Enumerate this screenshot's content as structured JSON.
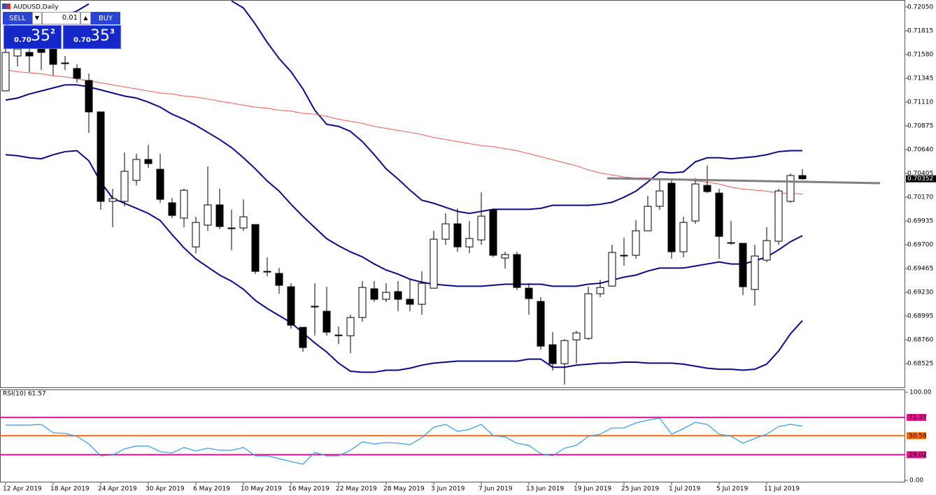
{
  "chart_data": [
    {
      "type": "candlestick",
      "title": "AUDUSD,Daily",
      "categories": [
        "12 Apr 2019",
        null,
        null,
        null,
        "18 Apr 2019",
        null,
        null,
        null,
        "24 Apr 2019",
        null,
        null,
        null,
        "30 Apr 2019",
        null,
        null,
        null,
        "6 May 2019",
        null,
        null,
        null,
        "10 May 2019",
        null,
        null,
        null,
        "16 May 2019",
        null,
        null,
        null,
        "22 May 2019",
        null,
        null,
        null,
        "28 May 2019",
        null,
        null,
        null,
        "3 Jun 2019",
        null,
        null,
        null,
        "7 Jun 2019",
        null,
        null,
        null,
        "13 Jun 2019",
        null,
        null,
        null,
        "19 Jun 2019",
        null,
        null,
        null,
        "25 Jun 2019",
        null,
        null,
        null,
        "1 Jul 2019",
        null,
        null,
        null,
        "5 Jul 2019",
        null,
        null,
        null,
        "11 Jul 2019",
        null,
        null,
        null
      ],
      "open": [
        0.71221,
        0.71566,
        0.71601,
        0.71635,
        0.71635,
        0.71497,
        0.71442,
        0.71324,
        0.71013,
        0.70129,
        0.70129,
        0.70336,
        0.70543,
        0.70446,
        0.70115,
        0.69963,
        0.69679,
        0.69894,
        0.70094,
        0.69866,
        0.69866,
        0.699,
        0.69437,
        0.69417,
        0.69285,
        0.68884,
        0.69092,
        0.69043,
        0.68808,
        0.68801,
        0.68981,
        0.69265,
        0.69161,
        0.69237,
        0.69161,
        0.69112,
        0.69271,
        0.69755,
        0.69907,
        0.69679,
        0.69748,
        0.70046,
        0.69569,
        0.69603,
        0.69271,
        0.6914,
        0.68712,
        0.68525,
        0.6876,
        0.68774,
        0.69216,
        0.69292,
        0.69596,
        0.69596,
        0.69838,
        0.7008,
        0.70308,
        0.69631,
        0.69935,
        0.70287,
        0.70211,
        0.69721,
        0.69714,
        0.69258,
        0.69548,
        0.69735,
        0.70129,
        0.70384
      ],
      "high": [
        0.71704,
        0.71704,
        0.7167,
        0.71704,
        0.71704,
        0.71566,
        0.71483,
        0.71393,
        0.71013,
        0.70253,
        0.70612,
        0.70598,
        0.70688,
        0.70598,
        0.70163,
        0.70253,
        0.69976,
        0.70474,
        0.70253,
        0.70046,
        0.70149,
        0.699,
        0.69576,
        0.69472,
        0.6932,
        0.68884,
        0.6932,
        0.69285,
        0.68891,
        0.69009,
        0.69341,
        0.69341,
        0.6932,
        0.69341,
        0.69354,
        0.69437,
        0.69838,
        0.70011,
        0.70059,
        0.69935,
        0.70218,
        0.70059,
        0.69631,
        0.69631,
        0.6932,
        0.69182,
        0.68836,
        0.68767,
        0.6885,
        0.69285,
        0.69354,
        0.697,
        0.69769,
        0.69942,
        0.70184,
        0.70357,
        0.70357,
        0.69976,
        0.70357,
        0.70481,
        0.70253,
        0.69935,
        0.69714,
        0.697,
        0.69873,
        0.70253,
        0.70405,
        0.70446
      ],
      "low": [
        0.71221,
        0.71462,
        0.71407,
        0.71428,
        0.71373,
        0.71428,
        0.71304,
        0.70806,
        0.70046,
        0.69873,
        0.7008,
        0.70287,
        0.7046,
        0.70115,
        0.69963,
        0.69873,
        0.69617,
        0.69838,
        0.69852,
        0.69645,
        0.69838,
        0.6941,
        0.69389,
        0.69216,
        0.68871,
        0.68642,
        0.68801,
        0.68801,
        0.68718,
        0.68629,
        0.6894,
        0.69133,
        0.69133,
        0.69043,
        0.69043,
        0.69009,
        0.69271,
        0.697,
        0.69631,
        0.69617,
        0.697,
        0.69576,
        0.69465,
        0.69251,
        0.69009,
        0.68663,
        0.68456,
        0.68318,
        0.68525,
        0.6876,
        0.69182,
        0.69285,
        0.69493,
        0.69562,
        0.69838,
        0.70046,
        0.69562,
        0.69576,
        0.69907,
        0.70211,
        0.69562,
        0.697,
        0.69202,
        0.69099,
        0.69527,
        0.697,
        0.70115,
        0.70343
      ],
      "close": [
        0.71601,
        0.71635,
        0.71566,
        0.71601,
        0.71483,
        0.71497,
        0.71345,
        0.71013,
        0.70129,
        0.70156,
        0.70426,
        0.70543,
        0.70502,
        0.70149,
        0.6999,
        0.70239,
        0.69921,
        0.70094,
        0.6988,
        0.69866,
        0.69976,
        0.69437,
        0.69437,
        0.69299,
        0.68905,
        0.68684,
        0.69092,
        0.68836,
        0.68808,
        0.68981,
        0.69278,
        0.69161,
        0.6923,
        0.69161,
        0.69112,
        0.6932,
        0.69755,
        0.69907,
        0.69679,
        0.69762,
        0.69983,
        0.69596,
        0.69603,
        0.69278,
        0.69168,
        0.68698,
        0.68525,
        0.68753,
        0.68829,
        0.69216,
        0.69278,
        0.69624,
        0.69596,
        0.69838,
        0.7008,
        0.70232,
        0.69631,
        0.69921,
        0.70301,
        0.70225,
        0.69783,
        0.69721,
        0.69285,
        0.69589,
        0.69741,
        0.70232,
        0.70384,
        0.70352
      ],
      "up_color": "#ffffff",
      "down_color": "#000000",
      "series": [
        {
          "color": "#0a0a8c",
          "values": [
            0.7188,
            0.7189,
            0.7191,
            0.7193,
            0.7195,
            0.7197,
            0.7201,
            0.7208,
            null,
            null,
            null,
            null,
            null,
            null,
            null,
            null,
            null,
            null,
            null,
            0.7211,
            0.7204,
            0.7188,
            0.717,
            0.7154,
            0.7141,
            0.7124,
            0.7103,
            0.7089,
            0.7087,
            0.7082,
            0.7072,
            0.7059,
            0.7045,
            0.7035,
            0.7024,
            0.7014,
            0.7011,
            0.7007,
            0.7003,
            0.7001,
            0.7003,
            0.7005,
            0.7005,
            0.7005,
            0.7005,
            0.7006,
            0.7009,
            0.7009,
            0.7009,
            0.7009,
            0.701,
            0.7012,
            0.7017,
            0.7023,
            0.7032,
            0.7042,
            0.7041,
            0.7042,
            0.7052,
            0.7056,
            0.7056,
            0.7055,
            0.7056,
            0.7057,
            0.7059,
            0.7062,
            0.7063,
            0.7063
          ]
        },
        {
          "color": "#0a0a8c",
          "values": [
            0.7113,
            0.7115,
            0.7119,
            0.7122,
            0.7125,
            0.7128,
            0.7128,
            0.7126,
            0.7123,
            0.712,
            0.7117,
            0.7115,
            0.7111,
            0.7106,
            0.7099,
            0.7094,
            0.7088,
            0.7081,
            0.7074,
            0.7066,
            0.7056,
            0.7045,
            0.7033,
            0.7023,
            0.701,
            0.6998,
            0.6987,
            0.6976,
            0.6969,
            0.6963,
            0.6958,
            0.6951,
            0.6945,
            0.6941,
            0.6936,
            0.6933,
            0.6931,
            0.693,
            0.6929,
            0.6929,
            0.6929,
            0.693,
            0.6931,
            0.6931,
            0.6931,
            0.6931,
            0.6929,
            0.6929,
            0.6929,
            0.6931,
            0.6932,
            0.6935,
            0.6938,
            0.694,
            0.6944,
            0.6947,
            0.6947,
            0.6947,
            0.6949,
            0.6951,
            0.6953,
            0.6951,
            0.6951,
            0.6954,
            0.6958,
            0.6965,
            0.6973,
            0.6979
          ]
        },
        {
          "color": "#0a0a8c",
          "values": [
            0.7059,
            0.7058,
            0.7056,
            0.7055,
            0.7059,
            0.7062,
            0.7063,
            0.7053,
            0.7032,
            0.7016,
            0.7011,
            0.7006,
            0.7001,
            0.6994,
            0.698,
            0.6967,
            0.6956,
            0.6948,
            0.694,
            0.6934,
            0.6926,
            0.6915,
            0.6907,
            0.69,
            0.6893,
            0.6883,
            0.6873,
            0.6864,
            0.6853,
            0.6845,
            0.6844,
            0.6844,
            0.6846,
            0.6846,
            0.6848,
            0.6851,
            0.6853,
            0.6854,
            0.6855,
            0.6855,
            0.6855,
            0.6855,
            0.6855,
            0.6855,
            0.6857,
            0.6857,
            0.6849,
            0.6849,
            0.6851,
            0.6852,
            0.6853,
            0.6853,
            0.6854,
            0.6854,
            0.6853,
            0.6853,
            0.6853,
            0.6852,
            0.685,
            0.6848,
            0.6847,
            0.6847,
            0.6846,
            0.6847,
            0.6852,
            0.6865,
            0.6882,
            0.6895
          ]
        },
        {
          "color": "#f05a50",
          "values": [
            0.7143,
            0.7141,
            0.714,
            0.7139,
            0.7137,
            0.7136,
            0.7134,
            0.7132,
            0.713,
            0.7128,
            0.7126,
            0.7124,
            0.7122,
            0.712,
            0.7119,
            0.7117,
            0.7116,
            0.7114,
            0.7112,
            0.711,
            0.7108,
            0.7106,
            0.7105,
            0.7103,
            0.7102,
            0.71,
            0.7099,
            0.7097,
            0.7094,
            0.7092,
            0.709,
            0.7087,
            0.7085,
            0.7083,
            0.7081,
            0.7079,
            0.7076,
            0.7074,
            0.7072,
            0.707,
            0.7068,
            0.7067,
            0.7065,
            0.7063,
            0.706,
            0.7057,
            0.7054,
            0.7051,
            0.7048,
            0.7044,
            0.7041,
            0.7039,
            0.7037,
            0.7036,
            0.7036,
            0.7035,
            0.7034,
            0.7034,
            0.7033,
            0.7032,
            0.703,
            0.7027,
            0.7025,
            0.7024,
            0.7023,
            0.7021,
            0.7021,
            0.702
          ]
        }
      ],
      "ylim": [
        0.68284,
        0.72119
      ],
      "yticks": [
        {
          "value": 0.7205,
          "label": "0.72050"
        },
        {
          "value": 0.71815,
          "label": "0.71815"
        },
        {
          "value": 0.7158,
          "label": "0.71580"
        },
        {
          "value": 0.71345,
          "label": "0.71345"
        },
        {
          "value": 0.7111,
          "label": "0.71110"
        },
        {
          "value": 0.70875,
          "label": "0.70875"
        },
        {
          "value": 0.7064,
          "label": "0.70640"
        },
        {
          "value": 0.70405,
          "label": "0.70405"
        },
        {
          "value": 0.7017,
          "label": "0.70170"
        },
        {
          "value": 0.69935,
          "label": "0.69935"
        },
        {
          "value": 0.697,
          "label": "0.69700"
        },
        {
          "value": 0.69465,
          "label": "0.69465"
        },
        {
          "value": 0.6923,
          "label": "0.69230"
        },
        {
          "value": 0.68995,
          "label": "0.68995"
        },
        {
          "value": 0.6876,
          "label": "0.68760"
        },
        {
          "value": 0.68525,
          "label": "0.68525"
        }
      ],
      "last_price": 0.70352
    },
    {
      "type": "line",
      "title": "RSI(10) 61.57",
      "color": "#3399ee",
      "values": [
        62.7,
        62.7,
        62.7,
        63.5,
        54.0,
        53.2,
        50.0,
        41.3,
        27.8,
        28.6,
        35.7,
        38.9,
        38.9,
        32.5,
        31.0,
        37.3,
        33.3,
        36.5,
        34.1,
        34.1,
        37.3,
        27.8,
        27.8,
        24.6,
        21.4,
        18.3,
        31.7,
        27.8,
        27.8,
        34.1,
        43.7,
        41.3,
        42.9,
        42.1,
        40.5,
        48.4,
        60.3,
        63.5,
        55.6,
        57.9,
        63.5,
        50.8,
        49.2,
        42.1,
        39.7,
        30.2,
        27.8,
        36.5,
        39.7,
        50.0,
        52.4,
        59.5,
        59.5,
        65.1,
        68.3,
        70.6,
        52.4,
        58.7,
        65.9,
        63.5,
        52.4,
        50.0,
        42.1,
        47.6,
        52.4,
        61.1,
        63.5,
        61.57
      ],
      "ylim": [
        -2.4,
        103.2
      ],
      "yticks": [
        {
          "value": 100,
          "label": "100.00"
        },
        {
          "value": 0,
          "label": "0.00"
        }
      ],
      "levels": [
        71.37,
        50.59,
        29.02
      ],
      "level_colors": [
        "#e8108c",
        "#ff6a00",
        "#e8108c"
      ]
    }
  ],
  "trade_panel": {
    "sell": "SELL",
    "volume": "0.01",
    "buy": "BUY",
    "bid": {
      "prefix": "0.70",
      "big": "35",
      "small": "2"
    },
    "ask": {
      "prefix": "0.70",
      "big": "35",
      "small": "3"
    }
  }
}
